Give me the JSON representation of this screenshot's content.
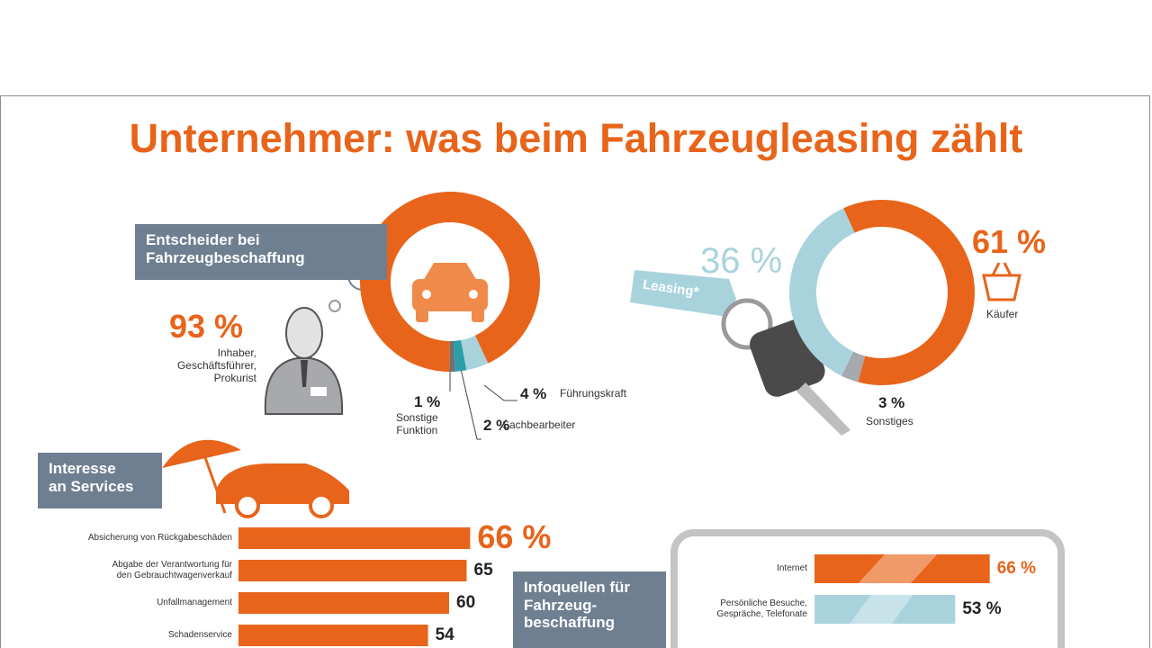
{
  "title": "Unternehmer: was beim Fahrzeugleasing zählt",
  "chart_data": [
    {
      "type": "donut",
      "title": "Entscheider bei\nFahrzeugbeschaffung",
      "categories": [
        "Inhaber,\nGeschäftsführer,\nProkurist",
        "Sonstige\nFunktion",
        "Sachbearbeiter",
        "Führungskraft"
      ],
      "values": [
        93,
        1,
        2,
        4
      ],
      "value_labels": [
        "93 %",
        "1 %",
        "2 %",
        "4 %"
      ],
      "colors": [
        "#e8641b",
        "#6f7275",
        "#2a9fa8",
        "#a9d3dc"
      ]
    },
    {
      "type": "donut",
      "categories": [
        "Käufer",
        "Leasing*",
        "Sonstiges"
      ],
      "values": [
        61,
        36,
        3
      ],
      "value_labels": [
        "61 %",
        "36 %",
        "3 %"
      ],
      "colors": [
        "#e8641b",
        "#a9d3dc",
        "#a7a9ac"
      ]
    },
    {
      "type": "hbar",
      "title": "Interesse\nan Services",
      "categories": [
        "Absicherung von Rückgabeschäden",
        "Abgabe der Verantwortung für\nden Gebrauchtwagenverkauf",
        "Unfallmanagement",
        "Schadenservice"
      ],
      "values": [
        66,
        65,
        60,
        54
      ],
      "value_labels": [
        "66 %",
        "65",
        "60",
        "54"
      ],
      "color": "#e8641b"
    },
    {
      "type": "hbar",
      "title": "Infoquellen für\nFahrzeug-\nbeschaffung",
      "categories": [
        "Internet",
        "Persönliche Besuche,\nGespräche, Telefonate"
      ],
      "values": [
        66,
        53
      ],
      "value_labels": [
        "66 %",
        "53 %"
      ],
      "colors": [
        "#e8641b",
        "#a9d3dc"
      ]
    }
  ]
}
